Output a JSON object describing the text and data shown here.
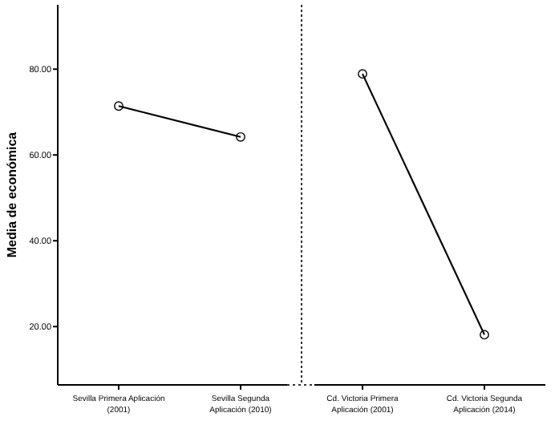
{
  "chart_data": [
    {
      "type": "line",
      "ylabel": "Media de económica",
      "categories": [
        "Sevilla Primera Aplicación\n(2001)",
        "Sevilla Segunda\nAplicación (2010)"
      ],
      "series": [
        {
          "color": "#000000",
          "values": [
            71.4,
            64.2
          ]
        }
      ],
      "ylim": [
        6.4,
        95
      ],
      "yticks": [
        {
          "value": 20,
          "label": "20.00"
        },
        {
          "value": 40,
          "label": "40.00"
        },
        {
          "value": 60,
          "label": "60.00"
        },
        {
          "value": 80,
          "label": "80.00"
        }
      ],
      "marker": "circle",
      "line_style": "solid"
    },
    {
      "type": "line",
      "categories": [
        "Cd. Victoria Primera\nAplicación (2001)",
        "Cd. Victoria Segunda\nAplicación (2014)"
      ],
      "series": [
        {
          "color": "#000000",
          "values": [
            78.9,
            18.1
          ]
        }
      ],
      "ylim": [
        6.4,
        95
      ],
      "marker": "circle",
      "line_style": "solid",
      "tick_labels": "x"
    }
  ]
}
